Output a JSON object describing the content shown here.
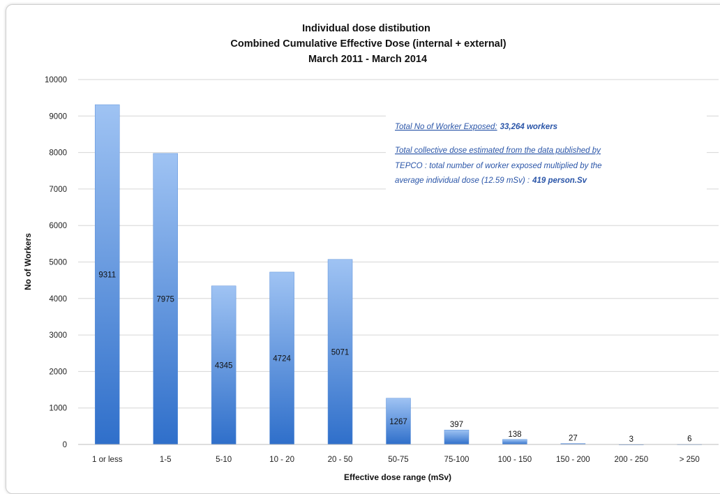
{
  "chart_data": {
    "type": "bar",
    "title": "Individual dose distibution",
    "subtitle_1": "Combined Cumulative Effective Dose (internal + external)",
    "subtitle_2": "March 2011 - March 2014",
    "xlabel": "Effective dose range (mSv)",
    "ylabel": "No of Workers",
    "ylim": [
      0,
      10000
    ],
    "yticks": [
      0,
      1000,
      2000,
      3000,
      4000,
      5000,
      6000,
      7000,
      8000,
      9000,
      10000
    ],
    "categories": [
      "1 or less",
      "1-5",
      "5-10",
      "10 - 20",
      "20 - 50",
      "50-75",
      "75-100",
      "100 - 150",
      "150 - 200",
      "200 - 250",
      "> 250"
    ],
    "values": [
      9311,
      7975,
      4345,
      4724,
      5071,
      1267,
      397,
      138,
      27,
      3,
      6
    ],
    "grid": true,
    "bar_color_top": "#9fc3f3",
    "bar_color_bottom": "#2f6fca",
    "annotation": {
      "line1_label": "Total No of Worker Exposed:",
      "line1_value": "33,264 workers",
      "line2": "Total collective dose estimated from the data published by",
      "line3": "TEPCO : total number of worker exposed multiplied by the",
      "line4_text": "average individual dose (12.59 mSv) :",
      "line4_value": "419 person.Sv"
    }
  }
}
